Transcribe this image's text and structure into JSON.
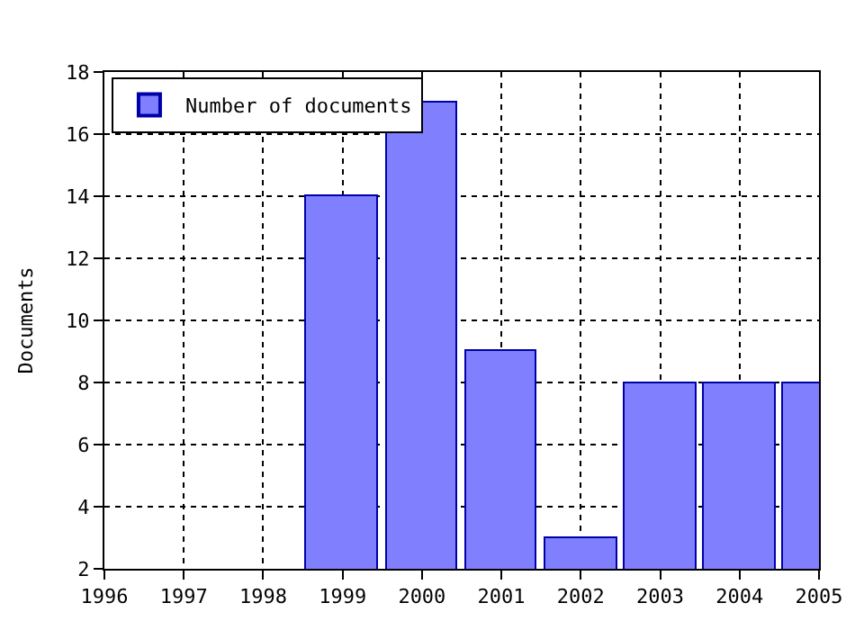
{
  "chart_data": {
    "type": "bar",
    "ylabel": "Documents",
    "x": [
      1999,
      2000,
      2001,
      2002,
      2003,
      2004,
      2005
    ],
    "series": [
      {
        "name": "Number of documents",
        "color": "#8080ff",
        "values": [
          14,
          17,
          9,
          3,
          8,
          8,
          8
        ]
      }
    ],
    "xlim": [
      1996,
      2005
    ],
    "xticks": [
      1996,
      1997,
      1998,
      1999,
      2000,
      2001,
      2002,
      2003,
      2004,
      2005
    ],
    "ylim": [
      2,
      18
    ],
    "yticks": [
      2,
      4,
      6,
      8,
      10,
      12,
      14,
      16,
      18
    ],
    "grid": true,
    "legend": "top left"
  }
}
